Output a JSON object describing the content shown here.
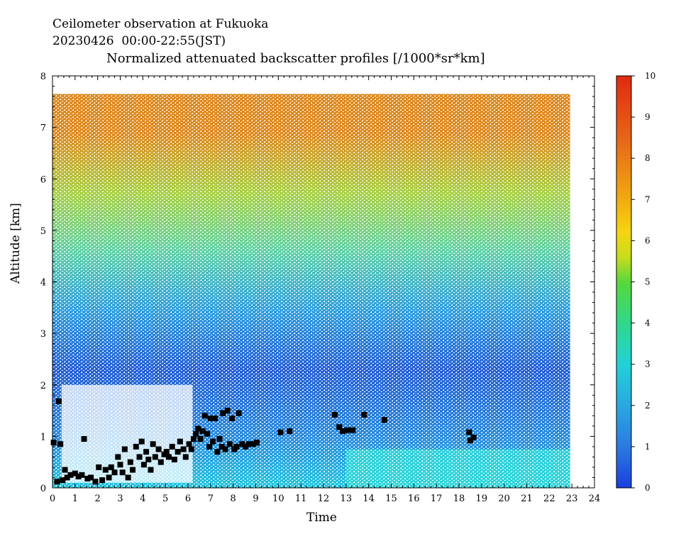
{
  "header": {
    "line1": "Ceilometer observation at Fukuoka",
    "line2": "20230426  00:00-22:55(JST)",
    "line3": "Normalized attenuated backscatter profiles [/1000*sr*km]"
  },
  "chart_data": {
    "type": "heatmap",
    "title": "Normalized attenuated backscatter profiles [/1000*sr*km]",
    "xlabel": "Time",
    "ylabel": "Altitude [km]",
    "xlim": [
      0,
      24
    ],
    "ylim": [
      0,
      8
    ],
    "x_ticks": [
      "0",
      "1",
      "2",
      "3",
      "4",
      "5",
      "6",
      "7",
      "8",
      "9",
      "10",
      "11",
      "12",
      "13",
      "14",
      "15",
      "16",
      "17",
      "18",
      "19",
      "20",
      "21",
      "22",
      "23",
      "24"
    ],
    "y_ticks": [
      "0",
      "1",
      "2",
      "3",
      "4",
      "5",
      "6",
      "7",
      "8"
    ],
    "colorbar": {
      "range": [
        0,
        10
      ],
      "ticks": [
        "0",
        "1",
        "2",
        "3",
        "4",
        "5",
        "6",
        "7",
        "8",
        "9",
        "10"
      ],
      "colors": [
        "#1a4fd8",
        "#2b7be0",
        "#2aa8e0",
        "#21d2d6",
        "#2fd88a",
        "#58d83a",
        "#a8dc1e",
        "#f0d010",
        "#f0a010",
        "#e86418",
        "#e02a10"
      ]
    },
    "data_extent": {
      "time_end": 22.92,
      "altitude_top": 7.65
    },
    "series": [
      {
        "type": "scatter",
        "marker": "square",
        "color": "#000000",
        "points": [
          [
            0.05,
            0.88
          ],
          [
            0.2,
            0.12
          ],
          [
            0.28,
            1.68
          ],
          [
            0.35,
            0.85
          ],
          [
            0.45,
            0.15
          ],
          [
            0.55,
            0.35
          ],
          [
            0.65,
            0.2
          ],
          [
            0.8,
            0.25
          ],
          [
            1.0,
            0.28
          ],
          [
            1.15,
            0.22
          ],
          [
            1.3,
            0.25
          ],
          [
            1.4,
            0.95
          ],
          [
            1.55,
            0.18
          ],
          [
            1.7,
            0.2
          ],
          [
            1.9,
            0.12
          ],
          [
            2.05,
            0.4
          ],
          [
            2.2,
            0.15
          ],
          [
            2.35,
            0.35
          ],
          [
            2.5,
            0.2
          ],
          [
            2.6,
            0.4
          ],
          [
            2.75,
            0.3
          ],
          [
            2.9,
            0.6
          ],
          [
            3.0,
            0.45
          ],
          [
            3.1,
            0.3
          ],
          [
            3.2,
            0.75
          ],
          [
            3.35,
            0.2
          ],
          [
            3.45,
            0.5
          ],
          [
            3.55,
            0.35
          ],
          [
            3.7,
            0.8
          ],
          [
            3.85,
            0.6
          ],
          [
            3.95,
            0.9
          ],
          [
            4.05,
            0.45
          ],
          [
            4.15,
            0.7
          ],
          [
            4.25,
            0.55
          ],
          [
            4.35,
            0.35
          ],
          [
            4.45,
            0.85
          ],
          [
            4.55,
            0.6
          ],
          [
            4.7,
            0.75
          ],
          [
            4.8,
            0.5
          ],
          [
            4.95,
            0.65
          ],
          [
            5.05,
            0.7
          ],
          [
            5.15,
            0.6
          ],
          [
            5.3,
            0.8
          ],
          [
            5.4,
            0.55
          ],
          [
            5.55,
            0.7
          ],
          [
            5.65,
            0.9
          ],
          [
            5.8,
            0.75
          ],
          [
            5.9,
            0.6
          ],
          [
            6.05,
            0.85
          ],
          [
            6.15,
            0.75
          ],
          [
            6.25,
            0.95
          ],
          [
            6.35,
            1.05
          ],
          [
            6.45,
            1.15
          ],
          [
            6.55,
            0.95
          ],
          [
            6.65,
            1.1
          ],
          [
            6.75,
            1.4
          ],
          [
            6.85,
            1.05
          ],
          [
            6.95,
            0.8
          ],
          [
            7.0,
            1.35
          ],
          [
            7.1,
            0.9
          ],
          [
            7.2,
            1.35
          ],
          [
            7.3,
            0.7
          ],
          [
            7.4,
            0.95
          ],
          [
            7.5,
            0.8
          ],
          [
            7.55,
            1.45
          ],
          [
            7.65,
            0.75
          ],
          [
            7.75,
            1.5
          ],
          [
            7.85,
            0.85
          ],
          [
            7.95,
            1.35
          ],
          [
            8.05,
            0.75
          ],
          [
            8.15,
            0.8
          ],
          [
            8.25,
            1.45
          ],
          [
            8.4,
            0.85
          ],
          [
            8.55,
            0.8
          ],
          [
            8.7,
            0.85
          ],
          [
            8.9,
            0.85
          ],
          [
            9.05,
            0.88
          ],
          [
            10.1,
            1.08
          ],
          [
            10.5,
            1.1
          ],
          [
            12.5,
            1.42
          ],
          [
            12.7,
            1.18
          ],
          [
            12.85,
            1.1
          ],
          [
            13.05,
            1.12
          ],
          [
            13.3,
            1.12
          ],
          [
            13.8,
            1.42
          ],
          [
            14.7,
            1.32
          ],
          [
            18.45,
            1.08
          ],
          [
            18.5,
            0.92
          ],
          [
            18.65,
            0.98
          ]
        ]
      }
    ]
  }
}
